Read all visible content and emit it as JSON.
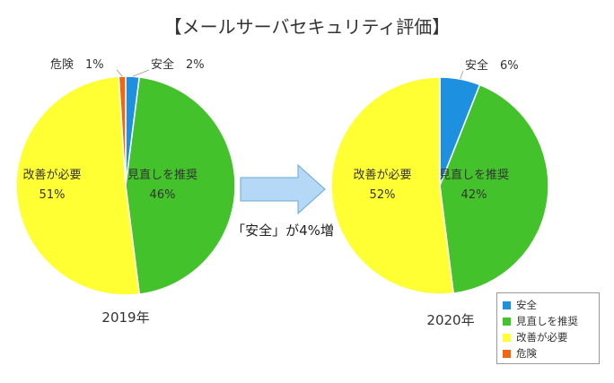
{
  "chart_data": {
    "type": "pie",
    "title": "【メールサーバセキュリティ評価】",
    "categories": [
      "安全",
      "見直しを推奨",
      "改善が必要",
      "危険"
    ],
    "colors": {
      "安全": "#1e90e0",
      "見直しを推奨": "#44c22c",
      "改善が必要": "#ffff33",
      "危険": "#f26513"
    },
    "pies": [
      {
        "name": "2019年",
        "values": [
          2,
          46,
          51,
          1
        ],
        "labels": [
          "2%",
          "46%",
          "51%",
          "1%"
        ]
      },
      {
        "name": "2020年",
        "values": [
          6,
          42,
          52,
          0
        ],
        "labels": [
          "6%",
          "42%",
          "52%",
          ""
        ]
      }
    ],
    "annotation": "「安全」が4%増",
    "legend_position": "bottom-right"
  }
}
